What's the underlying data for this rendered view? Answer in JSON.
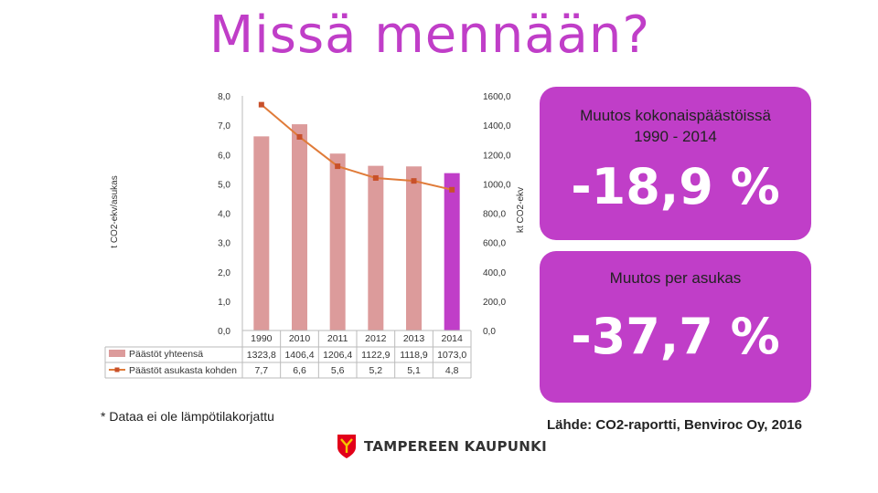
{
  "slide": {
    "title": "Missä mennään?",
    "note": "* Dataa ei ole lämpötilakorjattu",
    "source": "Lähde: CO2-raportti, Benviroc Oy, 2016",
    "logo_text": "TAMPEREEN KAUPUNKI"
  },
  "box_total": {
    "label_line1": "Muutos kokonaispäästöissä",
    "label_line2": "1990 - 2014",
    "value": "-18,9 %"
  },
  "box_per_capita": {
    "label": "Muutos per asukas",
    "value": "-37,7 %"
  },
  "colors": {
    "accent": "#c03ec8",
    "bar": "#dc9b9b",
    "bar_last": "#c03ec8",
    "line": "#e07b39"
  },
  "chart_data": {
    "type": "bar",
    "categories": [
      "1990",
      "2010",
      "2011",
      "2012",
      "2013",
      "2014"
    ],
    "series": [
      {
        "name": "Päästöt yhteensä",
        "type": "bar",
        "axis": "right",
        "values": [
          1323.8,
          1406.4,
          1206.4,
          1122.9,
          1118.9,
          1073.0
        ],
        "labels": [
          "1323,8",
          "1406,4",
          "1206,4",
          "1122,9",
          "1118,9",
          "1073,0"
        ]
      },
      {
        "name": "Päästöt asukasta kohden",
        "type": "line",
        "axis": "left",
        "values": [
          7.7,
          6.6,
          5.6,
          5.2,
          5.1,
          4.8
        ],
        "labels": [
          "7,7",
          "6,6",
          "5,6",
          "5,2",
          "5,1",
          "4,8"
        ]
      }
    ],
    "ylabel_left": "t CO2-ekv/asukas",
    "ylabel_right": "kt CO2-ekv",
    "ylim_left": [
      0,
      8
    ],
    "ylim_right": [
      0,
      1600
    ],
    "left_ticks": [
      "0,0",
      "1,0",
      "2,0",
      "3,0",
      "4,0",
      "5,0",
      "6,0",
      "7,0",
      "8,0"
    ],
    "right_ticks": [
      "0,0",
      "200,0",
      "400,0",
      "600,0",
      "800,0",
      "1000,0",
      "1200,0",
      "1400,0",
      "1600,0"
    ],
    "grid": false,
    "legend": "data-table-bottom"
  }
}
